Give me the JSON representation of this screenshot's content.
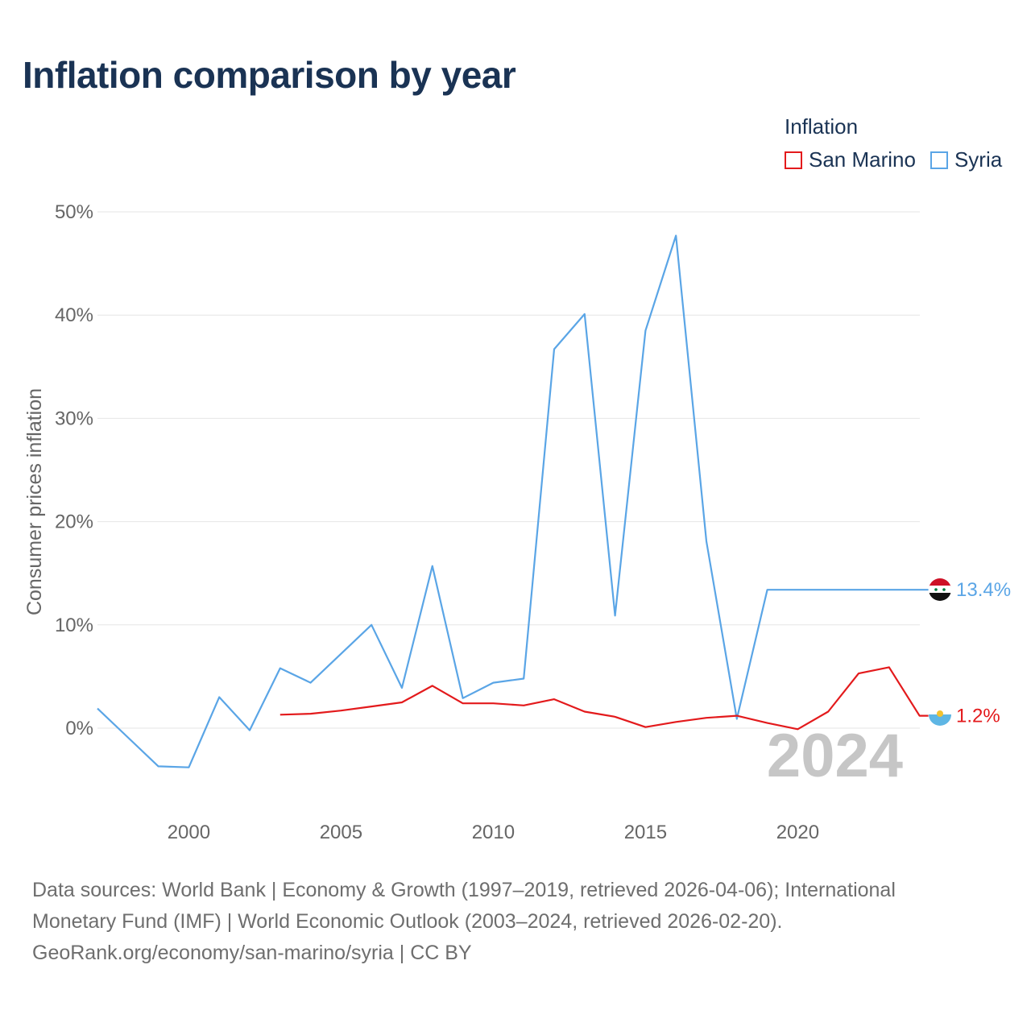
{
  "title": "Inflation comparison by year",
  "legend": {
    "title": "Inflation",
    "items": [
      {
        "name": "San Marino",
        "color": "#e31a1c"
      },
      {
        "name": "Syria",
        "color": "#5aa5e6"
      }
    ]
  },
  "footer": {
    "line1": "Data sources: World Bank | Economy & Growth (1997–2019, retrieved 2026-04-06); International",
    "line2": "Monetary Fund (IMF) | World Economic Outlook (2003–2024, retrieved 2026-02-20).",
    "line3": "GeoRank.org/economy/san-marino/syria | CC BY"
  },
  "chart_data": {
    "type": "line",
    "title": "Inflation comparison by year",
    "xlabel": "",
    "ylabel": "Consumer prices inflation",
    "xlim": [
      1997,
      2024
    ],
    "ylim": [
      -8,
      50
    ],
    "x_ticks": [
      2000,
      2005,
      2010,
      2015,
      2020
    ],
    "y_ticks": [
      0,
      10,
      20,
      30,
      40,
      50
    ],
    "y_tick_labels": [
      "0%",
      "10%",
      "20%",
      "30%",
      "40%",
      "50%"
    ],
    "grid": true,
    "legend_position": "top-right",
    "year_label": "2024",
    "series": [
      {
        "name": "Syria",
        "color": "#5aa5e6",
        "end_label": "13.4%",
        "x": [
          1997,
          1998,
          1999,
          2000,
          2001,
          2002,
          2003,
          2004,
          2005,
          2006,
          2007,
          2008,
          2009,
          2010,
          2011,
          2012,
          2013,
          2014,
          2015,
          2016,
          2017,
          2018,
          2019,
          2020,
          2021,
          2022,
          2023,
          2024
        ],
        "values": [
          1.9,
          -0.9,
          -3.7,
          -3.8,
          3.0,
          -0.2,
          5.8,
          4.4,
          7.2,
          10.0,
          3.9,
          15.7,
          2.9,
          4.4,
          4.8,
          36.7,
          40.1,
          10.9,
          38.5,
          47.7,
          18.1,
          0.9,
          13.4,
          13.4,
          13.4,
          13.4,
          13.4,
          13.4
        ]
      },
      {
        "name": "San Marino",
        "color": "#e31a1c",
        "end_label": "1.2%",
        "x": [
          2003,
          2004,
          2005,
          2006,
          2007,
          2008,
          2009,
          2010,
          2011,
          2012,
          2013,
          2014,
          2015,
          2016,
          2017,
          2018,
          2019,
          2020,
          2021,
          2022,
          2023,
          2024
        ],
        "values": [
          1.3,
          1.4,
          1.7,
          2.1,
          2.5,
          4.1,
          2.4,
          2.4,
          2.2,
          2.8,
          1.6,
          1.1,
          0.1,
          0.6,
          1.0,
          1.2,
          0.5,
          -0.1,
          1.6,
          5.3,
          5.9,
          1.2
        ]
      }
    ]
  }
}
